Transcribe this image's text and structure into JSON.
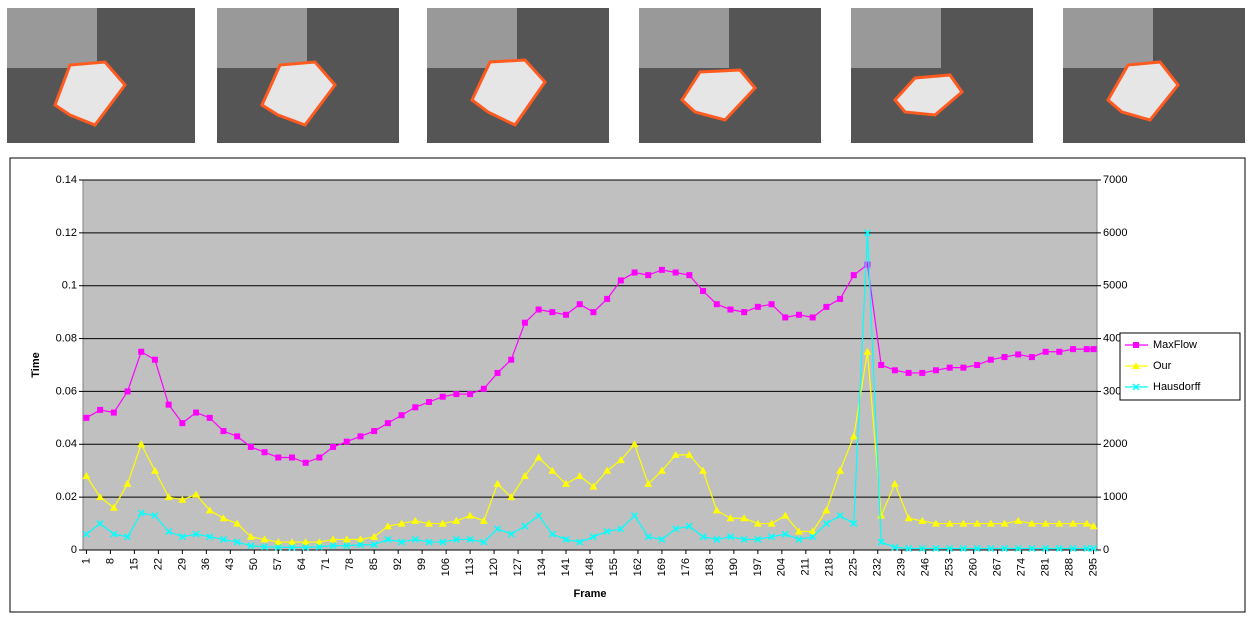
{
  "chart_data": {
    "type": "line",
    "y_label": "Time",
    "x_label": "Frame",
    "xlim": [
      0,
      296
    ],
    "xticks": [
      1,
      8,
      15,
      22,
      29,
      36,
      43,
      50,
      57,
      64,
      71,
      78,
      85,
      92,
      99,
      106,
      113,
      120,
      127,
      134,
      141,
      148,
      155,
      162,
      169,
      176,
      183,
      190,
      197,
      204,
      211,
      218,
      225,
      232,
      239,
      246,
      253,
      260,
      267,
      274,
      281,
      288,
      295
    ],
    "ylim": [
      0,
      0.14
    ],
    "yticks": [
      0,
      0.02,
      0.04,
      0.06,
      0.08,
      0.1,
      0.12,
      0.14
    ],
    "y2lim": [
      0,
      7000
    ],
    "y2ticks": [
      0,
      1000,
      2000,
      3000,
      4000,
      5000,
      6000,
      7000
    ],
    "grid": true,
    "legend": "right",
    "x": [
      1,
      5,
      9,
      13,
      17,
      21,
      25,
      29,
      33,
      37,
      41,
      45,
      49,
      53,
      57,
      61,
      65,
      69,
      73,
      77,
      81,
      85,
      89,
      93,
      97,
      101,
      105,
      109,
      113,
      117,
      121,
      125,
      129,
      133,
      137,
      141,
      145,
      149,
      153,
      157,
      161,
      165,
      169,
      173,
      177,
      181,
      185,
      189,
      193,
      197,
      201,
      205,
      209,
      213,
      217,
      221,
      225,
      229,
      233,
      237,
      241,
      245,
      249,
      253,
      257,
      261,
      265,
      269,
      273,
      277,
      281,
      285,
      289,
      293,
      295
    ],
    "series": [
      {
        "name": "MaxFlow",
        "color": "#ff00ff",
        "marker": "square",
        "values": [
          0.05,
          0.053,
          0.052,
          0.06,
          0.075,
          0.072,
          0.055,
          0.048,
          0.052,
          0.05,
          0.045,
          0.043,
          0.039,
          0.037,
          0.035,
          0.035,
          0.033,
          0.035,
          0.039,
          0.041,
          0.043,
          0.045,
          0.048,
          0.051,
          0.054,
          0.056,
          0.058,
          0.059,
          0.059,
          0.061,
          0.067,
          0.072,
          0.086,
          0.091,
          0.09,
          0.089,
          0.093,
          0.09,
          0.095,
          0.102,
          0.105,
          0.104,
          0.106,
          0.105,
          0.104,
          0.098,
          0.093,
          0.091,
          0.09,
          0.092,
          0.093,
          0.088,
          0.089,
          0.088,
          0.092,
          0.095,
          0.104,
          0.108,
          0.07,
          0.068,
          0.067,
          0.067,
          0.068,
          0.069,
          0.069,
          0.07,
          0.072,
          0.073,
          0.074,
          0.073,
          0.075,
          0.075,
          0.076,
          0.076,
          0.076
        ]
      },
      {
        "name": "Our",
        "color": "#ffff00",
        "marker": "triangle",
        "values": [
          0.028,
          0.02,
          0.016,
          0.025,
          0.04,
          0.03,
          0.02,
          0.019,
          0.021,
          0.015,
          0.012,
          0.01,
          0.005,
          0.004,
          0.003,
          0.003,
          0.003,
          0.003,
          0.004,
          0.004,
          0.004,
          0.005,
          0.009,
          0.01,
          0.011,
          0.01,
          0.01,
          0.011,
          0.013,
          0.011,
          0.025,
          0.02,
          0.028,
          0.035,
          0.03,
          0.025,
          0.028,
          0.024,
          0.03,
          0.034,
          0.04,
          0.025,
          0.03,
          0.036,
          0.036,
          0.03,
          0.015,
          0.012,
          0.012,
          0.01,
          0.01,
          0.013,
          0.007,
          0.007,
          0.015,
          0.03,
          0.043,
          0.075,
          0.013,
          0.025,
          0.012,
          0.011,
          0.01,
          0.01,
          0.01,
          0.01,
          0.01,
          0.01,
          0.011,
          0.01,
          0.01,
          0.01,
          0.01,
          0.01,
          0.009
        ]
      },
      {
        "name": "Hausdorff",
        "color": "#00ffff",
        "marker": "x",
        "axis": "y2",
        "values": [
          300,
          500,
          300,
          250,
          700,
          650,
          350,
          250,
          300,
          250,
          200,
          150,
          80,
          60,
          50,
          50,
          50,
          60,
          80,
          80,
          100,
          100,
          200,
          150,
          200,
          150,
          150,
          200,
          200,
          150,
          400,
          300,
          450,
          650,
          300,
          200,
          150,
          250,
          350,
          400,
          650,
          250,
          200,
          400,
          450,
          250,
          200,
          250,
          200,
          200,
          250,
          300,
          200,
          250,
          500,
          650,
          500,
          6000,
          150,
          50,
          30,
          30,
          30,
          30,
          30,
          30,
          30,
          30,
          30,
          30,
          30,
          30,
          30,
          30,
          30
        ]
      }
    ]
  }
}
